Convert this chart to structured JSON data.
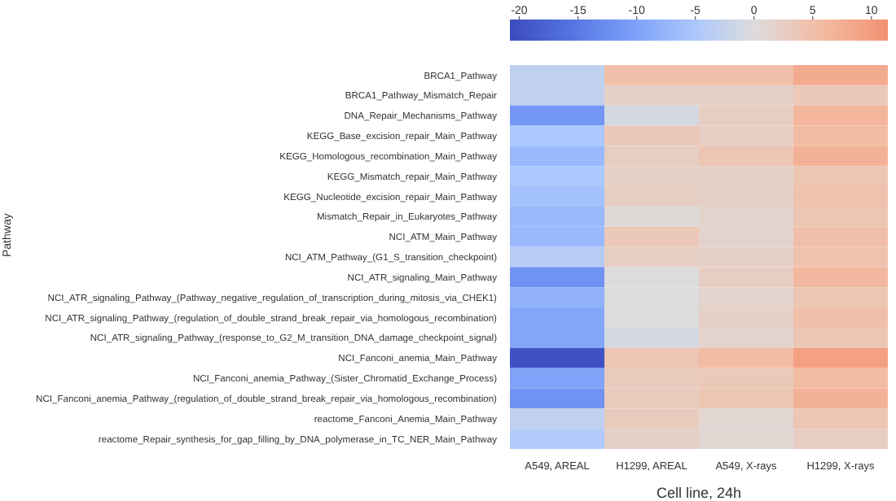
{
  "chart_data": {
    "type": "heatmap",
    "xlabel": "Cell line, 24h",
    "ylabel": "Pathway",
    "categories": [
      "A549, AREAL",
      "H1299, AREAL",
      "A549, X-rays",
      "H1299, X-rays"
    ],
    "y_categories": [
      "BRCA1_Pathway",
      "BRCA1_Pathway_Mismatch_Repair",
      "DNA_Repair_Mechanisms_Pathway",
      "KEGG_Base_excision_repair_Main_Pathway",
      "KEGG_Homologous_recombination_Main_Pathway",
      "KEGG_Mismatch_repair_Main_Pathway",
      "KEGG_Nucleotide_excision_repair_Main_Pathway",
      "Mismatch_Repair_in_Eukaryotes_Pathway",
      "NCI_ATM_Main_Pathway",
      "NCI_ATM_Pathway_(G1_S_transition_checkpoint)",
      "NCI_ATR_signaling_Main_Pathway",
      "NCI_ATR_signaling_Pathway_(Pathway_negative_regulation_of_transcription_during_mitosis_via_CHEK1)",
      "NCI_ATR_signaling_Pathway_(regulation_of_double_strand_break_repair_via_homologous_recombination)",
      "NCI_ATR_signaling_Pathway_(response_to_G2_M_transition_DNA_damage_checkpoint_signal)",
      "NCI_Fanconi_anemia_Main_Pathway",
      "NCI_Fanconi_anemia_Pathway_(Sister_Chromatid_Exchange_Process)",
      "NCI_Fanconi_anemia_Pathway_(regulation_of_double_strand_break_repair_via_homologous_recombination)",
      "reactome_Fanconi_Anemia_Main_Pathway",
      "reactome_Repair_synthesis_for_gap_filling_by_DNA_polymerase_in_TC_NER_Main_Pathway"
    ],
    "cells": [
      [
        -3,
        5,
        5,
        8
      ],
      [
        -3,
        2,
        2,
        3.5
      ],
      [
        -11.5,
        -1,
        2.5,
        6.5
      ],
      [
        -5,
        3.5,
        2.5,
        5.5
      ],
      [
        -7,
        2.5,
        4,
        7
      ],
      [
        -5,
        2,
        2,
        4
      ],
      [
        -6,
        2.5,
        2,
        4.5
      ],
      [
        -7,
        0.5,
        1.5,
        4
      ],
      [
        -7,
        3.5,
        1.5,
        5
      ],
      [
        -4,
        2.5,
        2,
        4.5
      ],
      [
        -12,
        0,
        2.5,
        6
      ],
      [
        -8,
        0,
        1.5,
        4
      ],
      [
        -9.5,
        0,
        2,
        5
      ],
      [
        -9.5,
        -1,
        1.5,
        4
      ],
      [
        -20,
        4,
        5.5,
        9.5
      ],
      [
        -10,
        3,
        3.5,
        5.5
      ],
      [
        -12,
        3,
        4,
        7
      ],
      [
        -3,
        3,
        1,
        4
      ],
      [
        -4.5,
        2,
        1,
        2.5
      ]
    ],
    "clim": [
      -20.8,
      11.4
    ],
    "cticks": [
      -20,
      -15,
      -10,
      -5,
      0,
      5,
      10
    ]
  }
}
